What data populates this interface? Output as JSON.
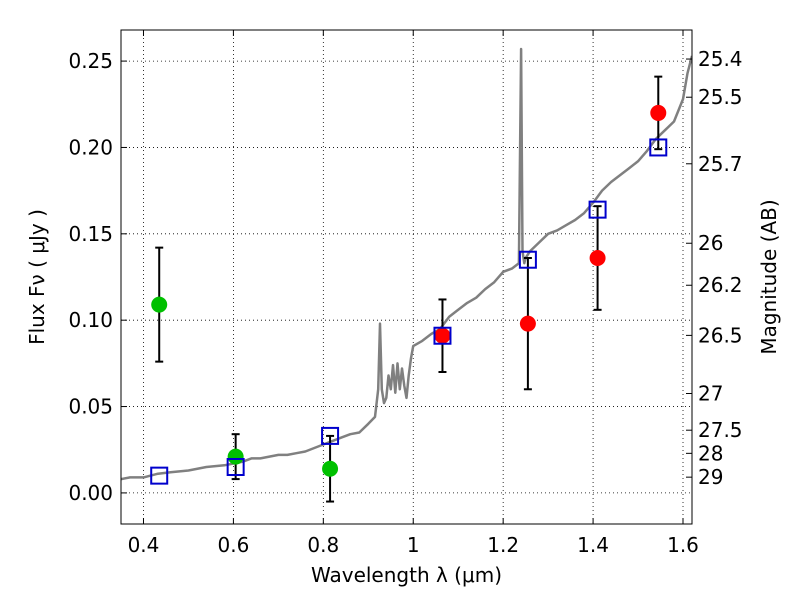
{
  "chart_data": {
    "type": "scatter",
    "xlabel": "Wavelength  λ (μm)",
    "ylabel": "Flux  Fν  ( μJy )",
    "y2label": "Magnitude (AB)",
    "xlim": [
      0.35,
      1.62
    ],
    "ylim": [
      -0.018,
      0.268
    ],
    "grid": true,
    "x_ticks": [
      {
        "v": 0.4,
        "label": "0.4"
      },
      {
        "v": 0.6,
        "label": "0.6"
      },
      {
        "v": 0.8,
        "label": "0.8"
      },
      {
        "v": 1.0,
        "label": "1"
      },
      {
        "v": 1.2,
        "label": "1.2"
      },
      {
        "v": 1.4,
        "label": "1.4"
      },
      {
        "v": 1.6,
        "label": "1.6"
      }
    ],
    "y_ticks": [
      {
        "v": 0.0,
        "label": "0.00"
      },
      {
        "v": 0.05,
        "label": "0.05"
      },
      {
        "v": 0.1,
        "label": "0.10"
      },
      {
        "v": 0.15,
        "label": "0.15"
      },
      {
        "v": 0.2,
        "label": "0.20"
      },
      {
        "v": 0.25,
        "label": "0.25"
      }
    ],
    "y2_ticks": [
      {
        "mag": 25.4,
        "label": "25.4"
      },
      {
        "mag": 25.5,
        "label": "25.5"
      },
      {
        "mag": 25.7,
        "label": "25.7"
      },
      {
        "mag": 26,
        "label": "26"
      },
      {
        "mag": 26.2,
        "label": "26.2"
      },
      {
        "mag": 26.5,
        "label": "26.5"
      },
      {
        "mag": 27,
        "label": "27"
      },
      {
        "mag": 27.5,
        "label": "27.5"
      },
      {
        "mag": 28,
        "label": "28"
      },
      {
        "mag": 29,
        "label": "29"
      }
    ],
    "series": [
      {
        "kind": "line",
        "color": "#808080",
        "x": [
          0.35,
          0.37,
          0.4,
          0.43,
          0.46,
          0.5,
          0.54,
          0.58,
          0.6,
          0.62,
          0.64,
          0.66,
          0.68,
          0.7,
          0.72,
          0.74,
          0.76,
          0.78,
          0.8,
          0.82,
          0.84,
          0.86,
          0.88,
          0.9,
          0.915,
          0.922,
          0.926,
          0.93,
          0.935,
          0.94,
          0.945,
          0.95,
          0.955,
          0.96,
          0.965,
          0.97,
          0.975,
          0.98,
          0.985,
          0.99,
          0.995,
          1.0,
          1.02,
          1.04,
          1.06,
          1.08,
          1.1,
          1.12,
          1.14,
          1.16,
          1.18,
          1.2,
          1.22,
          1.235,
          1.24,
          1.243,
          1.247,
          1.25,
          1.26,
          1.28,
          1.3,
          1.32,
          1.34,
          1.36,
          1.38,
          1.4,
          1.42,
          1.44,
          1.46,
          1.48,
          1.5,
          1.52,
          1.54,
          1.56,
          1.58,
          1.6,
          1.61,
          1.62
        ],
        "y": [
          0.008,
          0.009,
          0.009,
          0.011,
          0.012,
          0.013,
          0.015,
          0.016,
          0.017,
          0.018,
          0.02,
          0.02,
          0.021,
          0.022,
          0.022,
          0.023,
          0.024,
          0.026,
          0.028,
          0.03,
          0.032,
          0.034,
          0.035,
          0.04,
          0.044,
          0.06,
          0.098,
          0.06,
          0.052,
          0.055,
          0.068,
          0.06,
          0.074,
          0.058,
          0.075,
          0.06,
          0.072,
          0.062,
          0.055,
          0.068,
          0.078,
          0.085,
          0.088,
          0.092,
          0.095,
          0.102,
          0.106,
          0.11,
          0.113,
          0.118,
          0.122,
          0.128,
          0.13,
          0.133,
          0.257,
          0.14,
          0.133,
          0.136,
          0.14,
          0.145,
          0.15,
          0.152,
          0.155,
          0.158,
          0.162,
          0.168,
          0.175,
          0.18,
          0.184,
          0.188,
          0.192,
          0.198,
          0.205,
          0.21,
          0.215,
          0.228,
          0.243,
          0.253
        ]
      },
      {
        "name": "",
        "kind": "points",
        "marker": "circle",
        "color": "#00c000",
        "x": [
          0.435,
          0.605,
          0.815
        ],
        "y": [
          0.109,
          0.021,
          0.014
        ],
        "yerr": [
          0.033,
          0.013,
          0.019
        ]
      },
      {
        "name": "",
        "kind": "points",
        "marker": "circle",
        "color": "#ff0000",
        "x": [
          1.065,
          1.255,
          1.41,
          1.545
        ],
        "y": [
          0.091,
          0.098,
          0.136,
          0.22
        ],
        "yerr": [
          0.021,
          0.038,
          0.03,
          0.021
        ]
      },
      {
        "name": "",
        "kind": "points",
        "marker": "square-open",
        "color": "#0000cc",
        "x": [
          0.435,
          0.605,
          0.815,
          1.065,
          1.255,
          1.41,
          1.545
        ],
        "y": [
          0.01,
          0.015,
          0.033,
          0.091,
          0.135,
          0.164,
          0.2
        ]
      }
    ]
  }
}
